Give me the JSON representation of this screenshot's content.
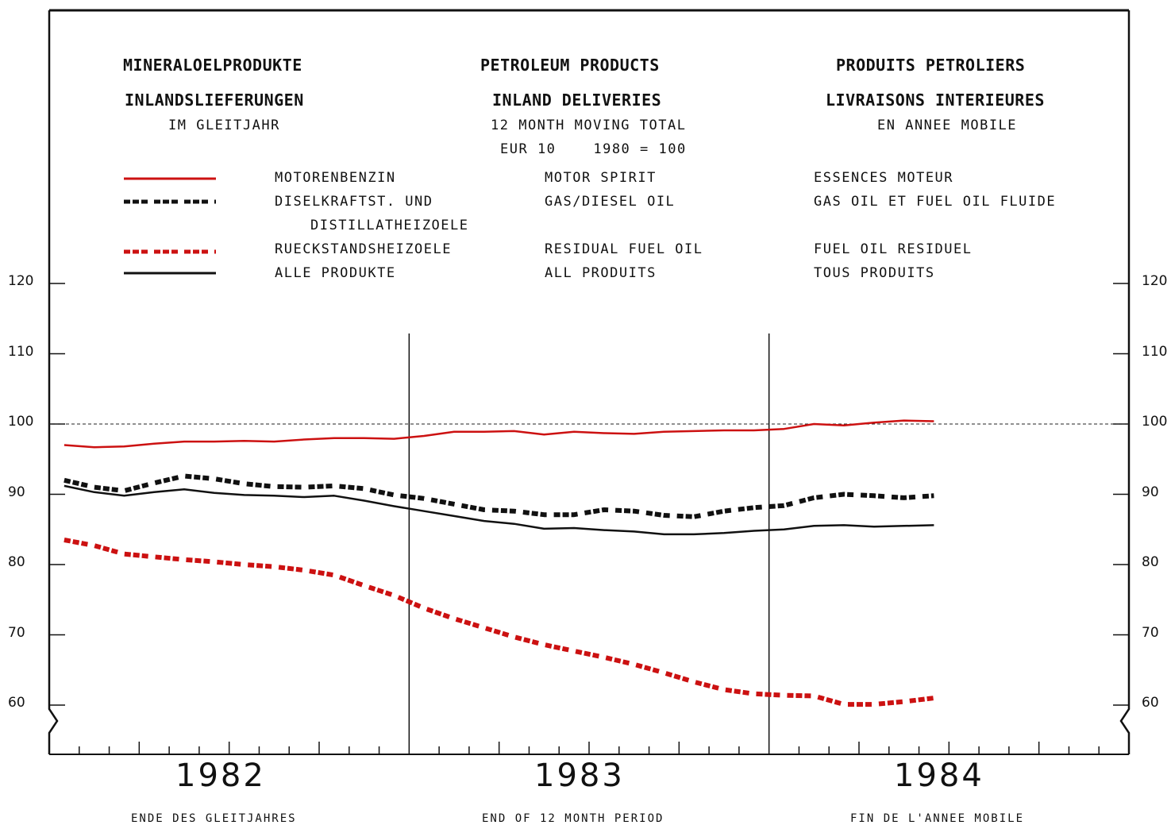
{
  "headers": {
    "de": [
      "MINERALOELPRODUKTE",
      "INLANDSLIEFERUNGEN",
      "IM GLEITJAHR"
    ],
    "en": [
      "PETROLEUM PRODUCTS",
      "INLAND DELIVERIES",
      "12 MONTH MOVING TOTAL",
      "EUR 10    1980 = 100"
    ],
    "fr": [
      "PRODUITS PETROLIERS",
      "LIVRAISONS INTERIEURES",
      "EN ANNEE MOBILE"
    ]
  },
  "legend": [
    {
      "de": "MOTORENBENZIN",
      "en": "MOTOR SPIRIT",
      "fr": "ESSENCES MOTEUR",
      "color": "#cc1111",
      "style": "solid"
    },
    {
      "de": "DISELKRAFTST. UND",
      "de2": "DISTILLATHEIZOELE",
      "en": "GAS/DIESEL OIL",
      "fr": "GAS OIL ET FUEL OIL FLUIDE",
      "color": "#111111",
      "style": "dashed"
    },
    {
      "de": "RUECKSTANDSHEIZOELE",
      "en": "RESIDUAL FUEL OIL",
      "fr": "FUEL OIL RESIDUEL",
      "color": "#cc1111",
      "style": "dashed"
    },
    {
      "de": "ALLE PRODUKTE",
      "en": "ALL PRODUITS",
      "fr": "TOUS PRODUITS",
      "color": "#111111",
      "style": "solid"
    }
  ],
  "footer": {
    "de": "ENDE DES GLEITJAHRES",
    "en": "END OF 12 MONTH PERIOD",
    "fr": "FIN DE L'ANNEE MOBILE"
  },
  "chart_data": {
    "type": "line",
    "ylim": [
      55,
      125
    ],
    "yticks": [
      60,
      70,
      80,
      90,
      100,
      110,
      120
    ],
    "reference_line": 100,
    "x_start": "1982-01",
    "x_months": 36,
    "years": [
      "1982",
      "1983",
      "1984"
    ],
    "grid": false,
    "series": [
      {
        "name": "MOTORENBENZIN / MOTOR SPIRIT / ESSENCES MOTEUR",
        "color": "#cc1111",
        "style": "solid",
        "values": [
          97.0,
          96.7,
          96.8,
          97.2,
          97.5,
          97.5,
          97.6,
          97.5,
          97.8,
          98.0,
          98.0,
          97.9,
          98.3,
          98.9,
          98.9,
          99.0,
          98.5,
          98.9,
          98.7,
          98.6,
          98.9,
          99.0,
          99.1,
          99.1,
          99.3,
          100.0,
          99.8,
          100.2,
          100.5,
          100.4
        ]
      },
      {
        "name": "DISELKRAFTST. UND DISTILLATHEIZOELE / GAS/DIESEL OIL / GAS OIL ET FUEL OIL FLUIDE",
        "color": "#111111",
        "style": "dashed",
        "values": [
          92.0,
          91.0,
          90.5,
          91.6,
          92.6,
          92.2,
          91.5,
          91.1,
          91.0,
          91.2,
          90.8,
          89.9,
          89.4,
          88.6,
          87.8,
          87.6,
          87.1,
          87.1,
          87.8,
          87.6,
          87.0,
          86.8,
          87.6,
          88.1,
          88.4,
          89.5,
          90.0,
          89.8,
          89.5,
          89.8
        ]
      },
      {
        "name": "RUECKSTANDSHEIZOELE / RESIDUAL FUEL OIL / FUEL OIL RESIDUEL",
        "color": "#cc1111",
        "style": "dashed",
        "values": [
          83.5,
          82.7,
          81.5,
          81.1,
          80.7,
          80.4,
          80.0,
          79.7,
          79.2,
          78.5,
          77.0,
          75.6,
          73.8,
          72.3,
          71.0,
          69.7,
          68.6,
          67.7,
          66.8,
          65.8,
          64.6,
          63.3,
          62.2,
          61.6,
          61.4,
          61.3,
          60.1,
          60.1,
          60.5,
          61.0
        ]
      },
      {
        "name": "ALLE PRODUKTE / ALL PRODUITS / TOUS PRODUITS",
        "color": "#111111",
        "style": "solid",
        "values": [
          91.2,
          90.3,
          89.8,
          90.3,
          90.7,
          90.2,
          89.9,
          89.8,
          89.6,
          89.8,
          89.1,
          88.3,
          87.6,
          86.9,
          86.2,
          85.8,
          85.1,
          85.2,
          84.9,
          84.7,
          84.3,
          84.3,
          84.5,
          84.8,
          85.0,
          85.5,
          85.6,
          85.4,
          85.5,
          85.6
        ]
      }
    ]
  }
}
